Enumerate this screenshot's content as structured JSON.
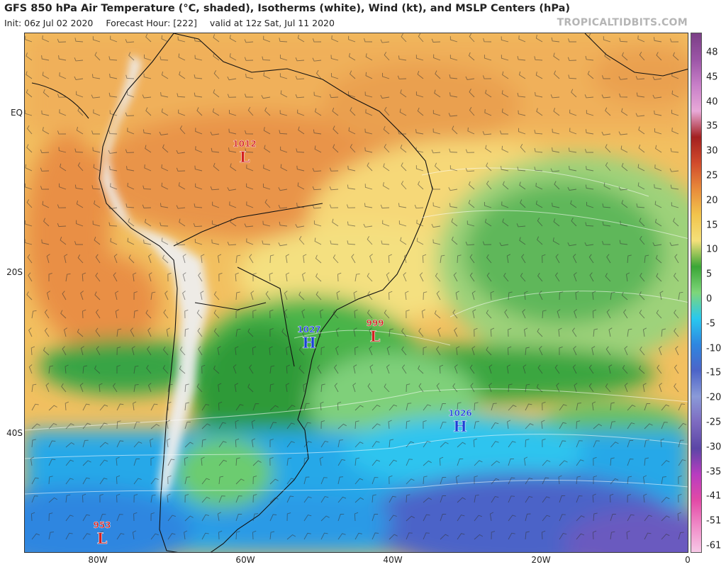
{
  "header": {
    "title": "GFS 850 hPa Air Temperature (°C, shaded), Isotherms (white), Wind (kt), and MSLP Centers (hPa)",
    "init": "Init: 06z Jul 02 2020",
    "forecast_hour": "Forecast Hour: [222]",
    "valid": "valid at 12z Sat, Jul 11 2020",
    "watermark": "TROPICALTIDBITS.COM"
  },
  "axes": {
    "lat_labels": [
      "EQ",
      "20S",
      "40S"
    ],
    "lon_labels": [
      "80W",
      "60W",
      "40W",
      "20W",
      "0"
    ]
  },
  "colorbar": {
    "labels": [
      "48",
      "45",
      "40",
      "35",
      "30",
      "25",
      "20",
      "15",
      "10",
      "5",
      "0",
      "-5",
      "-10",
      "-15",
      "-20",
      "-25",
      "-30",
      "-35",
      "-41",
      "-51",
      "-61"
    ],
    "colors": [
      "#7b3f86",
      "#9b55a6",
      "#c87fc8",
      "#e8a9d8",
      "#a32020",
      "#d14b2c",
      "#e88a3a",
      "#f2c44c",
      "#f4e07a",
      "#3aa636",
      "#7ed67a",
      "#28c8ef",
      "#2e86e0",
      "#4c64c8",
      "#8a9ad8",
      "#7d6ac0",
      "#5b46a6",
      "#b83cc0",
      "#e24aa6",
      "#f08cc8",
      "#f7c8e6"
    ]
  },
  "pressure_centers": [
    {
      "value": "1012",
      "symbol": "L",
      "kind": "low"
    },
    {
      "value": "1027",
      "symbol": "H",
      "kind": "high"
    },
    {
      "value": "999",
      "symbol": "L",
      "kind": "low"
    },
    {
      "value": "1026",
      "symbol": "H",
      "kind": "high"
    },
    {
      "value": "953",
      "symbol": "L",
      "kind": "low"
    }
  ],
  "styles": {
    "low_color": "#d42020",
    "high_color": "#1a3fd6"
  }
}
